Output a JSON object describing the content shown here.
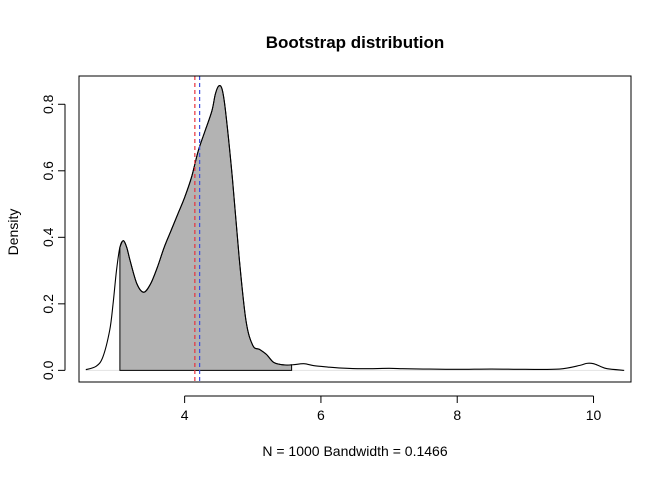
{
  "chart_data": {
    "type": "area",
    "title": "Bootstrap distribution",
    "xlabel": "N = 1000   Bandwidth = 0.1466",
    "ylabel": "Density",
    "xlim": [
      2.45,
      10.55
    ],
    "ylim": [
      -0.035,
      0.885
    ],
    "x_ticks": [
      4,
      6,
      8,
      10
    ],
    "y_ticks": [
      0.0,
      0.2,
      0.4,
      0.6,
      0.8
    ],
    "x_tick_labels": [
      "4",
      "6",
      "8",
      "10"
    ],
    "y_tick_labels": [
      "0.0",
      "0.2",
      "0.4",
      "0.6",
      "0.8"
    ],
    "grid": false,
    "density_curve": {
      "x": [
        2.55,
        2.7,
        2.8,
        2.9,
        2.95,
        3.0,
        3.05,
        3.1,
        3.15,
        3.2,
        3.3,
        3.4,
        3.5,
        3.6,
        3.7,
        3.8,
        3.9,
        4.0,
        4.1,
        4.2,
        4.3,
        4.4,
        4.45,
        4.5,
        4.55,
        4.6,
        4.7,
        4.8,
        4.9,
        5.0,
        5.1,
        5.2,
        5.3,
        5.4,
        5.5,
        5.6,
        5.75,
        5.9,
        6.1,
        6.3,
        6.6,
        7.0,
        7.2,
        7.5,
        8.0,
        8.5,
        9.0,
        9.5,
        9.8,
        9.9,
        10.0,
        10.1,
        10.2,
        10.45
      ],
      "y": [
        0.002,
        0.012,
        0.04,
        0.12,
        0.2,
        0.3,
        0.37,
        0.39,
        0.37,
        0.33,
        0.26,
        0.235,
        0.26,
        0.31,
        0.37,
        0.42,
        0.47,
        0.52,
        0.58,
        0.66,
        0.72,
        0.78,
        0.83,
        0.855,
        0.845,
        0.78,
        0.58,
        0.34,
        0.15,
        0.075,
        0.063,
        0.048,
        0.025,
        0.018,
        0.016,
        0.017,
        0.02,
        0.014,
        0.01,
        0.007,
        0.005,
        0.006,
        0.005,
        0.004,
        0.003,
        0.004,
        0.003,
        0.004,
        0.015,
        0.021,
        0.02,
        0.012,
        0.005,
        0.0
      ]
    },
    "shaded_region": {
      "from": 3.05,
      "to": 5.57,
      "fill": "#b3b3b3"
    },
    "reference_lines": [
      {
        "x": 4.15,
        "color": "#e8323c",
        "style": "dashed"
      },
      {
        "x": 4.22,
        "color": "#3c4ee0",
        "style": "dashed"
      }
    ],
    "baseline_color": "#e3e3e3"
  }
}
